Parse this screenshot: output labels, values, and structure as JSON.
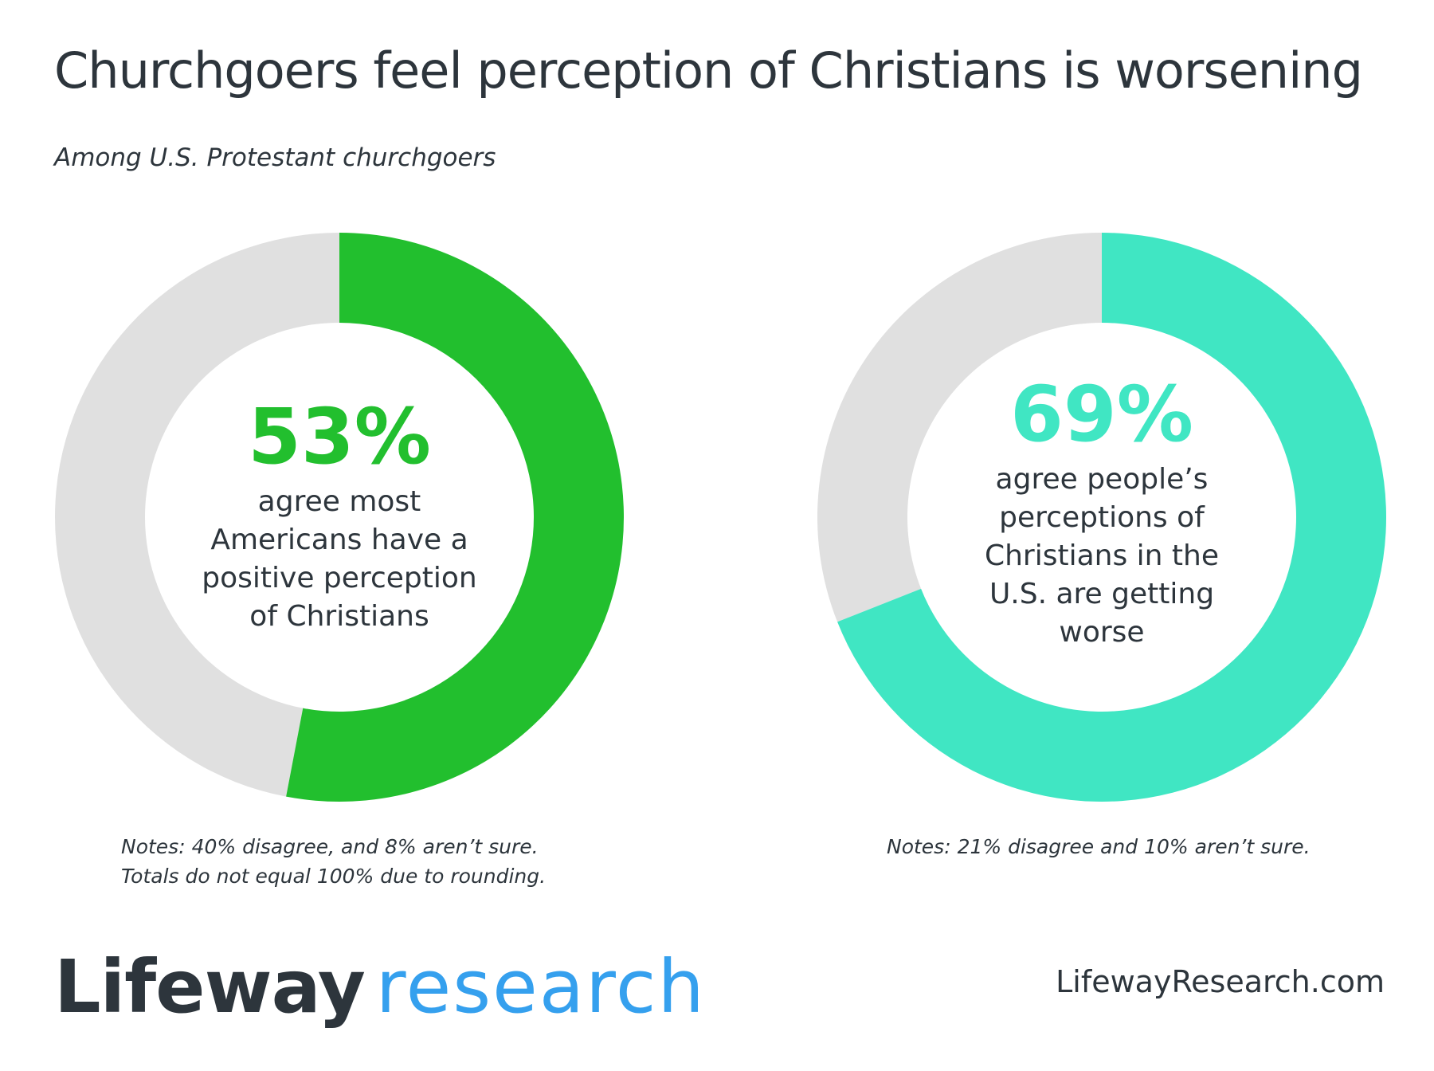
{
  "title": "Churchgoers feel perception of Christians is worsening",
  "subtitle": "Among U.S. Protestant churchgoers",
  "chart_data": [
    {
      "type": "pie",
      "variant": "donut",
      "value": 53,
      "label": "53%",
      "description": [
        "agree most",
        "Americans have a",
        "positive perception",
        "of Christians"
      ],
      "notes": [
        "Notes: 40% disagree, and 8% aren’t sure.",
        "Totals do not equal 100% due to rounding."
      ],
      "color": "#22bf2e",
      "remainder_color": "#e0e0e0"
    },
    {
      "type": "pie",
      "variant": "donut",
      "value": 69,
      "label": "69%",
      "description": [
        "agree people’s",
        "perceptions of",
        "Christians in the",
        "U.S. are getting",
        "worse"
      ],
      "notes": [
        "Notes: 21% disagree and 10% aren’t sure."
      ],
      "color": "#40e6c3",
      "remainder_color": "#e0e0e0"
    }
  ],
  "footer": {
    "logo_part1": "Lifeway",
    "logo_part2": "research",
    "url": "LifewayResearch.com"
  }
}
